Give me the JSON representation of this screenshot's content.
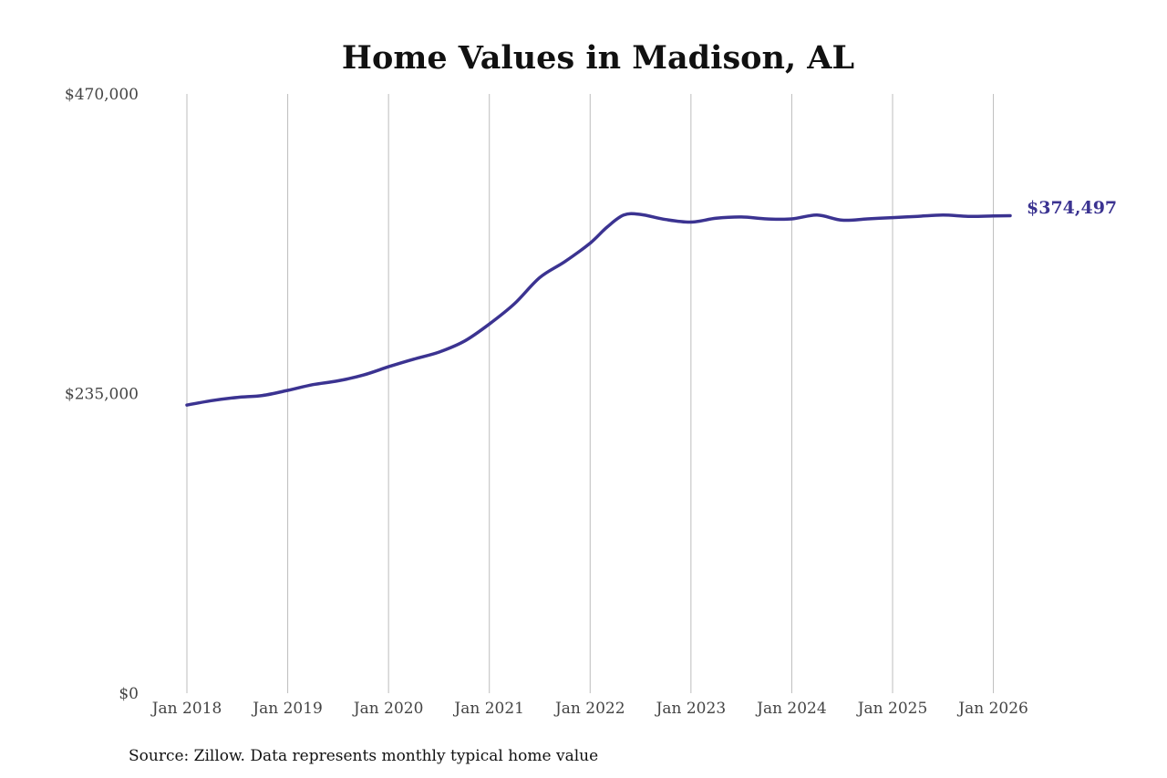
{
  "chart_data": {
    "type": "line",
    "title": "Home Values in Madison, AL",
    "xlabel": "",
    "ylabel": "",
    "y_ticks": [
      "$0",
      "$235,000",
      "$470,000"
    ],
    "y_tick_values": [
      0,
      235000,
      470000
    ],
    "ylim": [
      0,
      470000
    ],
    "x_ticks": [
      "Jan 2018",
      "Jan 2019",
      "Jan 2020",
      "Jan 2021",
      "Jan 2022",
      "Jan 2023",
      "Jan 2024",
      "Jan 2025",
      "Jan 2026"
    ],
    "x_tick_values": [
      "2018-01",
      "2019-01",
      "2020-01",
      "2021-01",
      "2022-01",
      "2023-01",
      "2024-01",
      "2025-01",
      "2026-01"
    ],
    "xlim": [
      "2018-01",
      "2026-03"
    ],
    "grid": "vertical",
    "line_color": "#3b3391",
    "end_label": "$374,497",
    "series": [
      {
        "x": [
          "2018-01",
          "2018-04",
          "2018-07",
          "2018-10",
          "2019-01",
          "2019-04",
          "2019-07",
          "2019-10",
          "2020-01",
          "2020-04",
          "2020-07",
          "2020-10",
          "2021-01",
          "2021-04",
          "2021-07",
          "2021-10",
          "2022-01",
          "2022-03",
          "2022-05",
          "2022-07",
          "2022-10",
          "2023-01",
          "2023-04",
          "2023-07",
          "2023-10",
          "2024-01",
          "2024-04",
          "2024-07",
          "2024-10",
          "2025-01",
          "2025-04",
          "2025-07",
          "2025-10",
          "2026-01",
          "2026-03"
        ],
        "y": [
          226000,
          229500,
          232000,
          233500,
          237500,
          242000,
          245000,
          249500,
          256000,
          262000,
          267500,
          276000,
          289500,
          305500,
          326000,
          338500,
          353000,
          365500,
          375000,
          375500,
          371500,
          369500,
          372500,
          373500,
          372000,
          372000,
          375000,
          371000,
          372000,
          373000,
          374000,
          375000,
          374000,
          374300,
          374497
        ]
      }
    ]
  },
  "footer": {
    "source": "Source: Zillow. Data represents monthly typical home value"
  }
}
